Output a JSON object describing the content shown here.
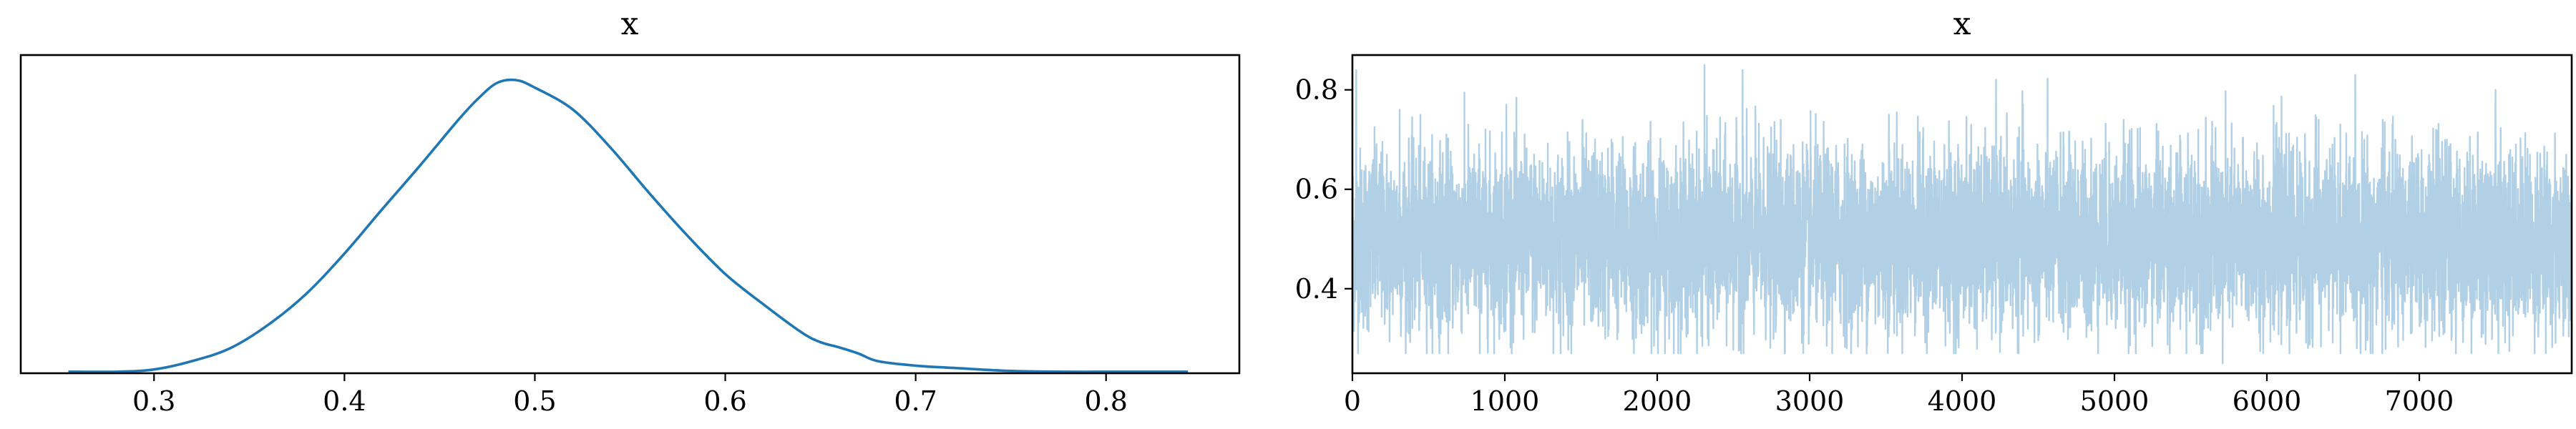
{
  "chart_data": [
    {
      "type": "line",
      "panel": "density",
      "title": "x",
      "xlabel": "",
      "ylabel": "",
      "xlim": [
        0.23,
        0.87
      ],
      "ylim": [
        0,
        4.2
      ],
      "xticks": [
        0.3,
        0.4,
        0.5,
        0.6,
        0.7,
        0.8
      ],
      "xtick_labels": [
        "0.3",
        "0.4",
        "0.5",
        "0.6",
        "0.7",
        "0.8"
      ],
      "yticks": [],
      "grid": false,
      "color": "#1f77b4",
      "series": [
        {
          "x": [
            0.255,
            0.28,
            0.3,
            0.32,
            0.34,
            0.36,
            0.38,
            0.4,
            0.42,
            0.44,
            0.46,
            0.47,
            0.48,
            0.49,
            0.5,
            0.52,
            0.54,
            0.56,
            0.58,
            0.6,
            0.62,
            0.64,
            0.65,
            0.66,
            0.67,
            0.68,
            0.7,
            0.72,
            0.75,
            0.78,
            0.81,
            0.843
          ],
          "y": [
            0.02,
            0.02,
            0.05,
            0.16,
            0.33,
            0.64,
            1.05,
            1.58,
            2.17,
            2.75,
            3.35,
            3.62,
            3.83,
            3.87,
            3.77,
            3.48,
            2.97,
            2.38,
            1.82,
            1.31,
            0.91,
            0.54,
            0.41,
            0.34,
            0.26,
            0.16,
            0.1,
            0.07,
            0.03,
            0.02,
            0.02,
            0.02
          ]
        }
      ]
    },
    {
      "type": "line",
      "panel": "trace",
      "title": "x",
      "xlabel": "",
      "ylabel": "",
      "xlim": [
        0,
        8000
      ],
      "ylim": [
        0.23,
        0.87
      ],
      "xticks": [
        0,
        1000,
        2000,
        3000,
        4000,
        5000,
        6000,
        7000
      ],
      "xtick_labels": [
        "0",
        "1000",
        "2000",
        "3000",
        "4000",
        "5000",
        "6000",
        "7000"
      ],
      "yticks": [
        0.4,
        0.6,
        0.8
      ],
      "ytick_labels": [
        "0.4",
        "0.6",
        "0.8"
      ],
      "grid": false,
      "color": "#1f77b4",
      "alpha": 0.35,
      "n_draws": 8000,
      "mean": 0.5,
      "sd": 0.1,
      "series": [
        {
          "x": [
            25,
            310,
            760,
            1010,
            1510,
            1700,
            2310,
            2560,
            2810,
            3520,
            4060,
            4400,
            5060,
            5550,
            5710,
            6340,
            6590,
            6760,
            7110,
            7240,
            7500,
            7830
          ],
          "y": [
            0.84,
            0.76,
            0.73,
            0.77,
            0.74,
            0.7,
            0.85,
            0.84,
            0.74,
            0.75,
            0.73,
            0.77,
            0.74,
            0.72,
            0.25,
            0.74,
            0.28,
            0.74,
            0.72,
            0.27,
            0.8,
            0.27
          ]
        }
      ]
    }
  ]
}
